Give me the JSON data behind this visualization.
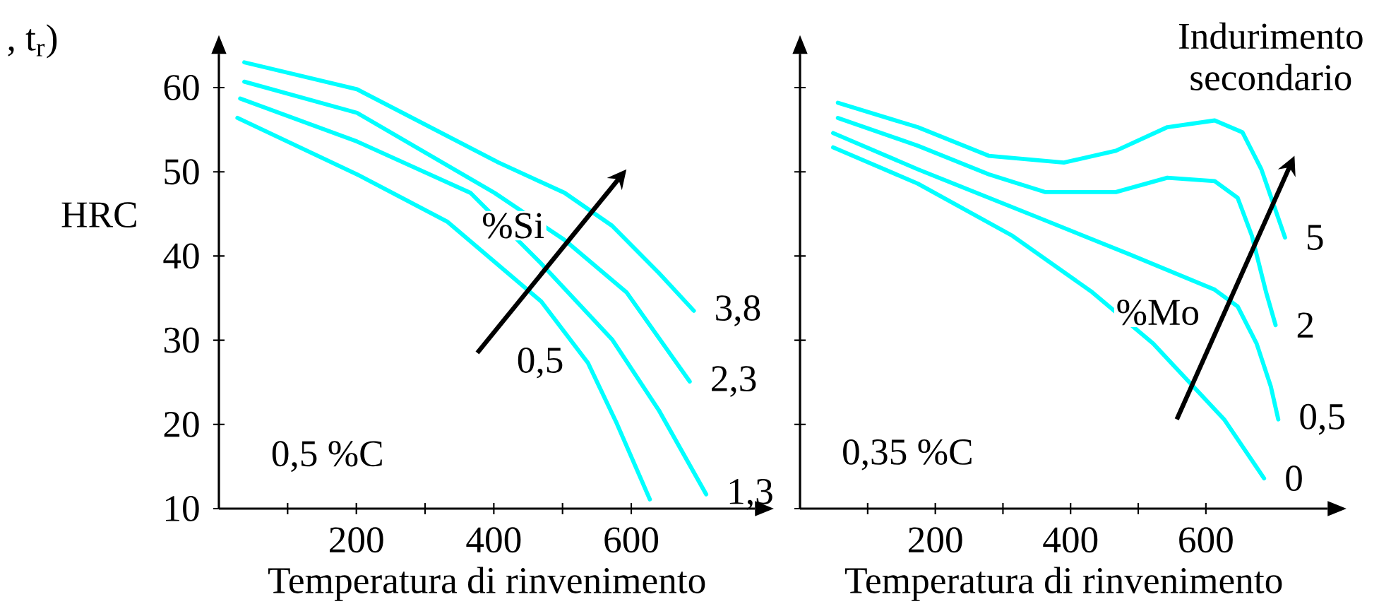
{
  "chart_data": [
    {
      "type": "line",
      "xlabel": "Temperatura di rinvenimento",
      "ylabel": "HRC",
      "xlim": [
        0,
        780
      ],
      "ylim": [
        10,
        64
      ],
      "xticks": [
        {
          "value": 100,
          "label": null
        },
        200,
        {
          "value": 300,
          "label": null
        },
        400,
        {
          "value": 500,
          "label": null
        },
        600
      ],
      "yticks": [
        10,
        20,
        30,
        40,
        50,
        60
      ],
      "annotations": [
        ", t$_{r}$)",
        "%Si",
        "0,5 %C"
      ],
      "series": [
        {
          "name": "3,8",
          "color": "#00ffff",
          "x": [
            37,
            201,
            407,
            503,
            572,
            640,
            691
          ],
          "values": [
            63.0,
            59.8,
            51.1,
            47.5,
            43.6,
            38.0,
            33.5
          ]
        },
        {
          "name": "2,3",
          "color": "#00ffff",
          "x": [
            37,
            201,
            401,
            503,
            593,
            685
          ],
          "values": [
            60.7,
            57.0,
            47.5,
            41.9,
            35.7,
            25.1
          ]
        },
        {
          "name": "1,3",
          "color": "#00ffff",
          "x": [
            31,
            201,
            366,
            469,
            572,
            640,
            709
          ],
          "values": [
            58.7,
            53.6,
            47.5,
            39.1,
            30.1,
            21.7,
            11.7
          ]
        },
        {
          "name": "0,5",
          "color": "#00ffff",
          "x": [
            27,
            201,
            332,
            469,
            537,
            579,
            627
          ],
          "values": [
            56.4,
            49.7,
            44.1,
            34.6,
            27.3,
            20.1,
            11.1
          ]
        }
      ]
    },
    {
      "type": "line",
      "xlabel": "Temperatura di rinvenimento",
      "xlim": [
        0,
        780
      ],
      "ylim": [
        10,
        64
      ],
      "tick_labels": "x",
      "xticks": [
        {
          "value": 100,
          "label": null
        },
        200,
        {
          "value": 300,
          "label": null
        },
        400,
        {
          "value": 500,
          "label": null
        },
        600
      ],
      "yticks": [
        10,
        20,
        30,
        40,
        50,
        60
      ],
      "annotations": [
        "Indurimento secondario",
        "%Mo",
        "0,35 %C"
      ],
      "series": [
        {
          "name": "5",
          "color": "#00ffff",
          "x": [
            56,
            174,
            279,
            390,
            467,
            543,
            613,
            654,
            682,
            717
          ],
          "values": [
            58.2,
            55.3,
            51.9,
            51.1,
            52.5,
            55.3,
            56.1,
            54.7,
            50.3,
            42.2
          ]
        },
        {
          "name": "2",
          "color": "#00ffff",
          "x": [
            56,
            174,
            279,
            362,
            467,
            543,
            613,
            647,
            668,
            689,
            703
          ],
          "values": [
            56.4,
            53.1,
            49.7,
            47.6,
            47.6,
            49.3,
            48.9,
            46.9,
            42.4,
            35.7,
            31.8
          ]
        },
        {
          "name": "0,5",
          "color": "#00ffff",
          "x": [
            49,
            174,
            348,
            487,
            613,
            647,
            675,
            696,
            707
          ],
          "values": [
            54.6,
            50.3,
            44.7,
            40.2,
            36.0,
            34.0,
            29.6,
            24.5,
            20.6
          ]
        },
        {
          "name": "0",
          "color": "#00ffff",
          "x": [
            49,
            174,
            314,
            432,
            522,
            627,
            686
          ],
          "values": [
            52.9,
            48.6,
            42.4,
            35.7,
            29.6,
            20.6,
            13.6
          ]
        }
      ]
    }
  ]
}
